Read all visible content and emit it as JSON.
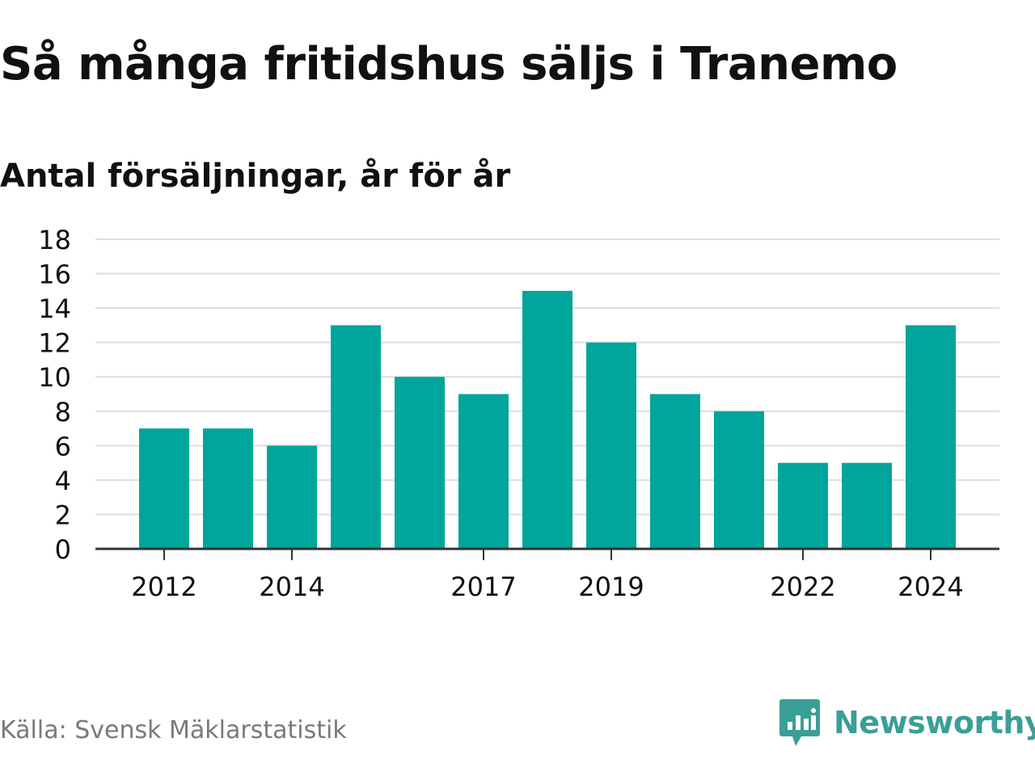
{
  "chart_data": {
    "type": "bar",
    "title": "Så många fritidshus säljs i Tranemo",
    "subtitle": "Antal försäljningar, år för år",
    "categories": [
      "2012",
      "2013",
      "2014",
      "2015",
      "2016",
      "2017",
      "2018",
      "2019",
      "2020",
      "2021",
      "2022",
      "2023",
      "2024"
    ],
    "values": [
      7,
      7,
      6,
      13,
      10,
      9,
      15,
      12,
      9,
      8,
      5,
      5,
      13
    ],
    "x_tick_labels": [
      "2012",
      "2014",
      "2017",
      "2019",
      "2022",
      "2024"
    ],
    "y_ticks": [
      0,
      2,
      4,
      6,
      8,
      10,
      12,
      14,
      16,
      18
    ],
    "ylim": [
      0,
      18
    ],
    "xlabel": "",
    "ylabel": "",
    "grid": "horizontal",
    "legend": "none",
    "colors": {
      "bar": "#00a59b",
      "grid": "#dddddd",
      "axis": "#333333",
      "text": "#111111",
      "source": "#7a7a7a",
      "brand": "#3a9f97"
    }
  },
  "footer": {
    "source": "Källa: Svensk Mäklarstatistik",
    "brand_name": "Newsworthy",
    "brand_icon": "speech-bubble-bar-chart-icon"
  }
}
